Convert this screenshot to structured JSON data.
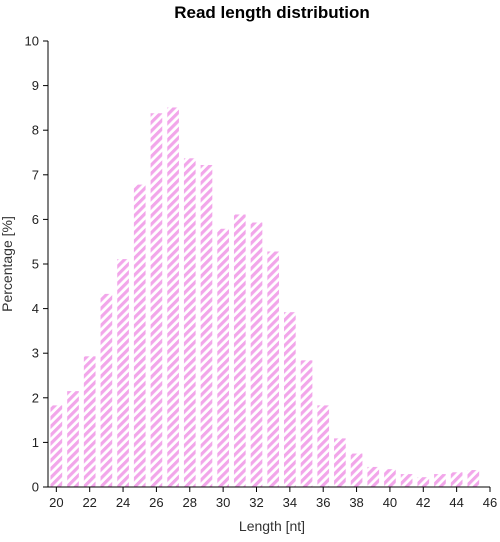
{
  "chart_data": {
    "type": "bar",
    "title": "Read length distribution",
    "xlabel": "Length [nt]",
    "ylabel": "Percentage [%]",
    "x": [
      20,
      21,
      22,
      23,
      24,
      25,
      26,
      27,
      28,
      29,
      30,
      31,
      32,
      33,
      34,
      35,
      36,
      37,
      38,
      39,
      40,
      41,
      42,
      43,
      44,
      45
    ],
    "values": [
      1.83,
      2.15,
      2.93,
      4.33,
      5.11,
      6.78,
      8.38,
      8.51,
      7.37,
      7.22,
      5.79,
      6.11,
      5.93,
      5.28,
      3.92,
      2.84,
      1.83,
      1.09,
      0.75,
      0.45,
      0.4,
      0.29,
      0.22,
      0.29,
      0.33,
      0.38
    ],
    "xlim": [
      19.5,
      46
    ],
    "ylim": [
      0,
      10
    ],
    "x_ticks": [
      20,
      22,
      24,
      26,
      28,
      30,
      32,
      34,
      36,
      38,
      40,
      42,
      44,
      46
    ],
    "y_ticks": [
      0,
      1,
      2,
      3,
      4,
      5,
      6,
      7,
      8,
      9,
      10
    ],
    "bar_color": "#f2a6ea",
    "bar_fill": "diagonal-hatch",
    "grid": false,
    "legend": "none"
  }
}
